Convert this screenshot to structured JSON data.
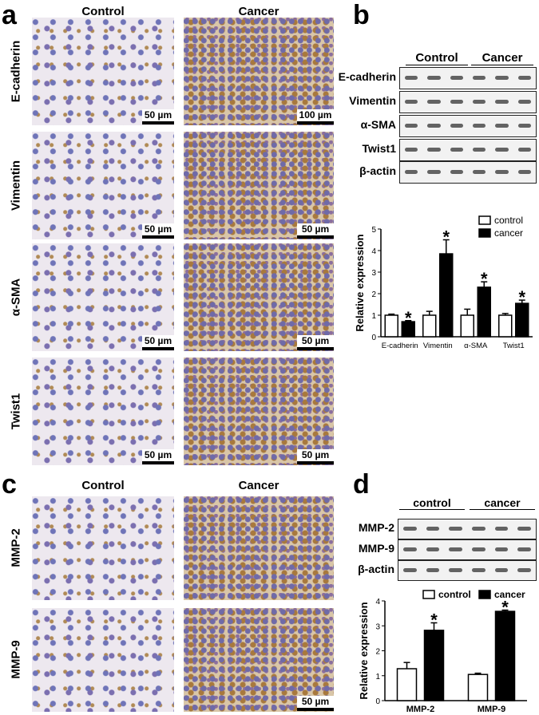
{
  "panel_a": {
    "label": "a",
    "col_headers": [
      "Control",
      "Cancer"
    ],
    "rows": [
      {
        "marker": "E-cadherin",
        "scale_left": "50 µm",
        "scale_right": "100 µm"
      },
      {
        "marker": "Vimentin",
        "scale_left": "50 µm",
        "scale_right": "50 µm"
      },
      {
        "marker": "α-SMA",
        "scale_left": "50 µm",
        "scale_right": "50 µm"
      },
      {
        "marker": "Twist1",
        "scale_left": "50 µm",
        "scale_right": "50 µm"
      }
    ]
  },
  "panel_b": {
    "label": "b",
    "groups": [
      "Control",
      "Cancer"
    ],
    "blot_rows": [
      "E-cadherin",
      "Vimentin",
      "α-SMA",
      "Twist1",
      "β-actin"
    ]
  },
  "panel_c": {
    "label": "c",
    "col_headers": [
      "Control",
      "Cancer"
    ],
    "rows": [
      {
        "marker": "MMP-2"
      },
      {
        "marker": "MMP-9",
        "scale_right": "50 µm"
      }
    ]
  },
  "panel_d": {
    "label": "d",
    "groups": [
      "control",
      "cancer"
    ],
    "blot_rows": [
      "MMP-2",
      "MMP-9",
      "β-actin"
    ]
  },
  "chart_data": [
    {
      "type": "bar",
      "ylabel": "Relative expression",
      "ylim": [
        0,
        5
      ],
      "yticks": [
        0,
        1,
        2,
        3,
        4,
        5
      ],
      "categories": [
        "E-cadherin",
        "Vimentin",
        "α-SMA",
        "Twist1"
      ],
      "legend": "top-right",
      "series": [
        {
          "name": "control",
          "color": "#ffffff",
          "values": [
            1,
            1,
            1,
            1
          ],
          "errors": [
            0.05,
            0.18,
            0.28,
            0.08
          ]
        },
        {
          "name": "cancer",
          "color": "#000000",
          "values": [
            0.7,
            3.85,
            2.3,
            1.55
          ],
          "errors": [
            0.05,
            0.65,
            0.25,
            0.15
          ]
        }
      ],
      "significance": [
        false,
        true,
        false,
        true,
        false,
        true,
        false,
        true
      ],
      "sig_mark": "*"
    },
    {
      "type": "bar",
      "ylabel": "Relative expression",
      "ylim": [
        0,
        4
      ],
      "yticks": [
        0,
        1,
        2,
        3,
        4
      ],
      "categories": [
        "MMP-2",
        "MMP-9"
      ],
      "legend": "top",
      "series": [
        {
          "name": "control",
          "color": "#ffffff",
          "values": [
            1.28,
            1.05
          ],
          "errors": [
            0.25,
            0.05
          ]
        },
        {
          "name": "cancer",
          "color": "#000000",
          "values": [
            2.82,
            3.58
          ],
          "errors": [
            0.3,
            0.05
          ]
        }
      ],
      "significance": [
        false,
        true,
        false,
        true
      ],
      "sig_mark": "*"
    }
  ]
}
